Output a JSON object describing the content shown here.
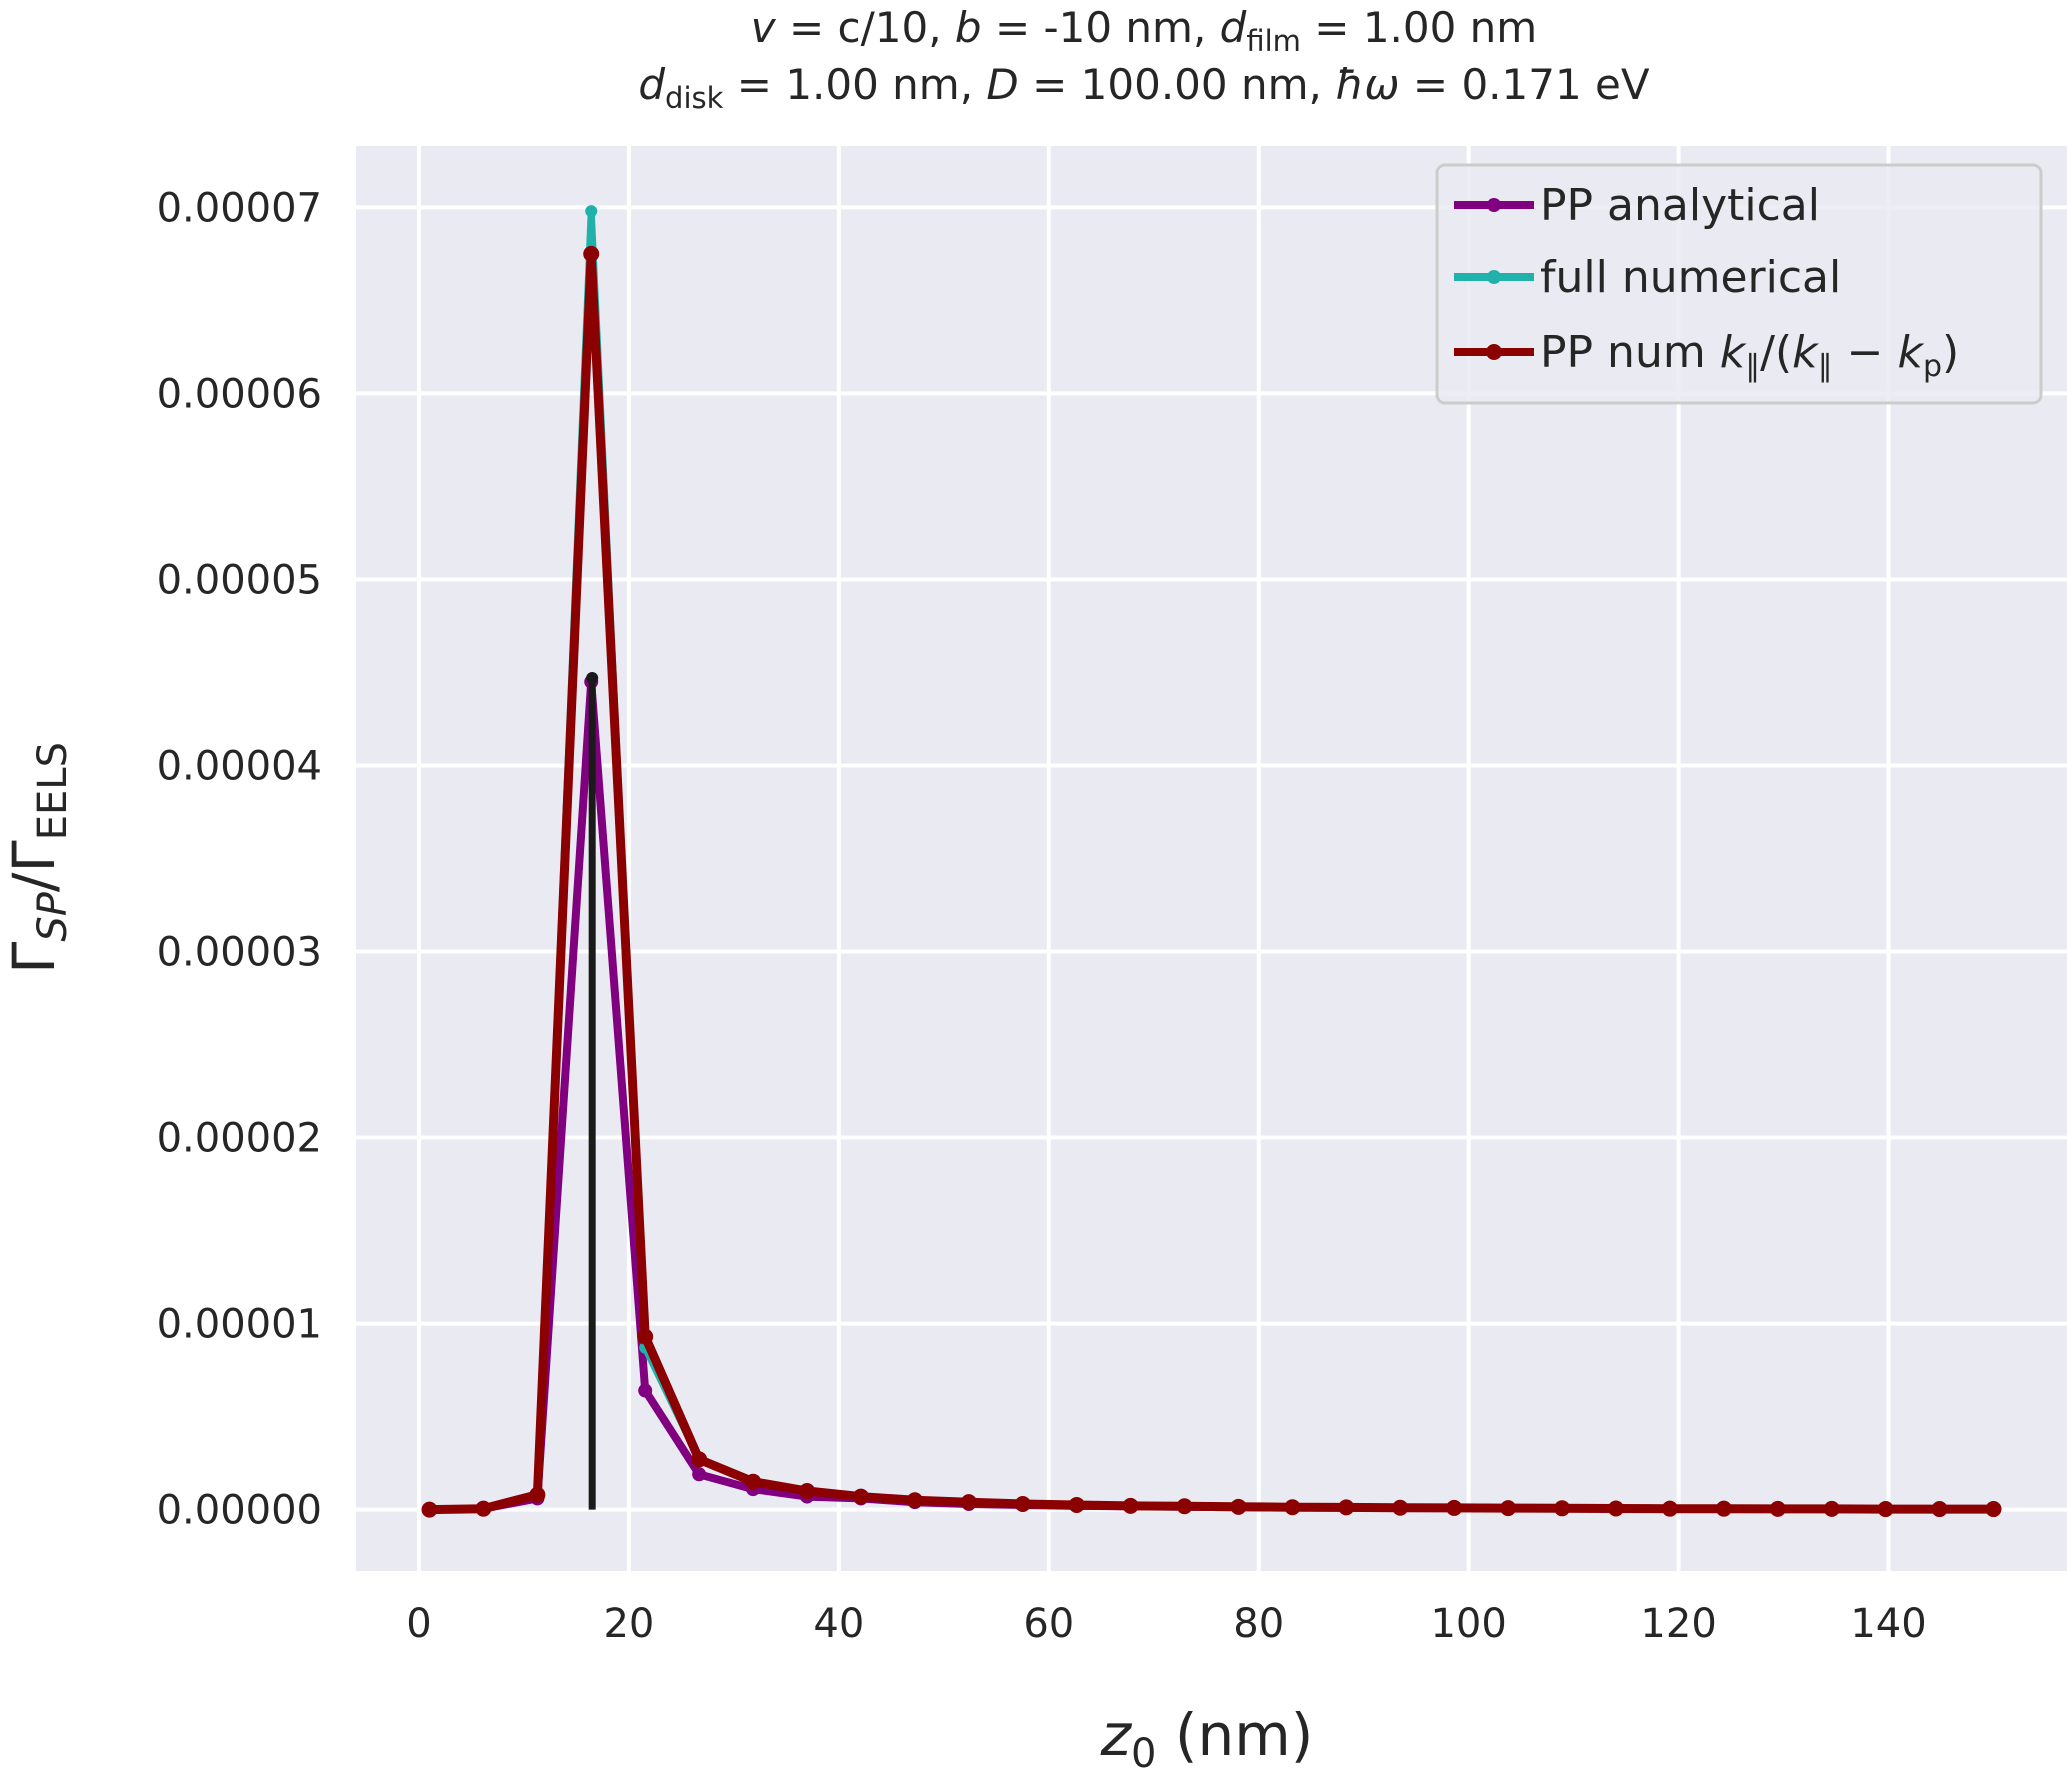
{
  "chart_data": {
    "type": "line",
    "title_line1": "v = c/10, b = -10 nm, d_film = 1.00 nm",
    "title_line2": "d_disk = 1.00 nm, D = 100.00 nm, ħω = 0.171 eV",
    "xlabel": "z_0 (nm)",
    "ylabel": "Γ_SP/Γ_EELS",
    "xlim": [
      -6,
      157
    ],
    "ylim": [
      -3.3e-06,
      7.33e-05
    ],
    "xticks": [
      0,
      20,
      40,
      60,
      80,
      100,
      120,
      140
    ],
    "xtick_labels": [
      "0",
      "20",
      "40",
      "60",
      "80",
      "100",
      "120",
      "140"
    ],
    "yticks": [
      0,
      1e-05,
      2e-05,
      3e-05,
      4e-05,
      5e-05,
      6e-05,
      7e-05
    ],
    "ytick_labels": [
      "0.00000",
      "0.00001",
      "0.00002",
      "0.00003",
      "0.00004",
      "0.00005",
      "0.00006",
      "0.00007"
    ],
    "grid": true,
    "legend_position": "top-right",
    "x": [
      1,
      6.14,
      11.28,
      16.41,
      21.55,
      26.69,
      31.83,
      36.97,
      42.1,
      47.24,
      52.38,
      57.52,
      62.66,
      67.79,
      72.93,
      78.07,
      83.21,
      88.34,
      93.48,
      98.62,
      103.76,
      108.9,
      114.03,
      119.17,
      124.31,
      129.45,
      134.59,
      139.72,
      144.86,
      150
    ],
    "series": [
      {
        "name": "PP analytical",
        "color": "#800080",
        "values": [
          0.0,
          5e-08,
          6e-07,
          4.45e-05,
          6.4e-06,
          1.9e-06,
          1.1e-06,
          7e-07,
          6e-07,
          4e-07,
          3e-07,
          2.5e-07,
          2e-07,
          1.8e-07,
          1.5e-07,
          1.3e-07,
          1.2e-07,
          1e-07,
          9e-08,
          8e-08,
          7e-08,
          6e-08,
          5e-08,
          5e-08,
          4e-08,
          4e-08,
          3e-08,
          3e-08,
          3e-08,
          2e-08
        ]
      },
      {
        "name": "full numerical",
        "color": "#20b2aa",
        "values": [
          0.0,
          5e-08,
          8e-07,
          6.98e-05,
          8.7e-06,
          2.7e-06,
          1.5e-06,
          1e-06,
          7e-07,
          5e-07,
          4e-07,
          3e-07,
          2.5e-07,
          2e-07,
          1.8e-07,
          1.5e-07,
          1.3e-07,
          1.2e-07,
          1e-07,
          9e-08,
          8e-08,
          7e-08,
          6e-08,
          5e-08,
          5e-08,
          4e-08,
          4e-08,
          3e-08,
          3e-08,
          3e-08
        ]
      },
      {
        "name": "PP num k_∥/(k_∥ − k_p)",
        "color": "#8b0000",
        "values": [
          0.0,
          5e-08,
          8e-07,
          6.75e-05,
          9.3e-06,
          2.7e-06,
          1.5e-06,
          1e-06,
          7e-07,
          5e-07,
          4e-07,
          3e-07,
          2.5e-07,
          2e-07,
          1.8e-07,
          1.5e-07,
          1.3e-07,
          1.2e-07,
          1e-07,
          9e-08,
          8e-08,
          7e-08,
          6e-08,
          5e-08,
          5e-08,
          4e-08,
          4e-08,
          3e-08,
          3e-08,
          3e-08
        ]
      }
    ],
    "vline": {
      "x": 16.5,
      "y_from": 0,
      "y_to": 4.47e-05,
      "color": "#1a1a1a"
    }
  }
}
